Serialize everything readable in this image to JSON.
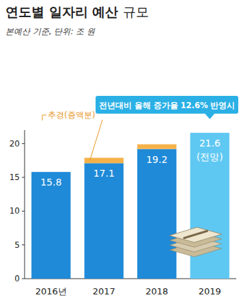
{
  "chart_data": {
    "type": "bar",
    "title": "연도별 일자리 예산 규모",
    "subtitle": "본예산 기준, 단위: 조 원",
    "annotation": "전년대비 올해 증가율 12.6% 반영시",
    "categories": [
      "2016년",
      "2017",
      "2018",
      "2019"
    ],
    "series": [
      {
        "values": [
          15.8,
          17.1,
          19.2,
          21.6
        ],
        "colors": [
          "#1f8ad8",
          "#1f8ad8",
          "#1f8ad8",
          "#5fc8f2"
        ],
        "value_labels": [
          "15.8",
          "17.1",
          "19.2",
          "21.6\n(전망)"
        ]
      },
      {
        "name": "추경(증액분)",
        "values": [
          null,
          0.8,
          0.7,
          null
        ],
        "color": "#f5b24a"
      }
    ],
    "stacked": true,
    "data_labels": true,
    "grid": false,
    "ylim": [
      0,
      22
    ],
    "yticks": [
      0,
      5,
      10,
      15,
      20
    ]
  }
}
